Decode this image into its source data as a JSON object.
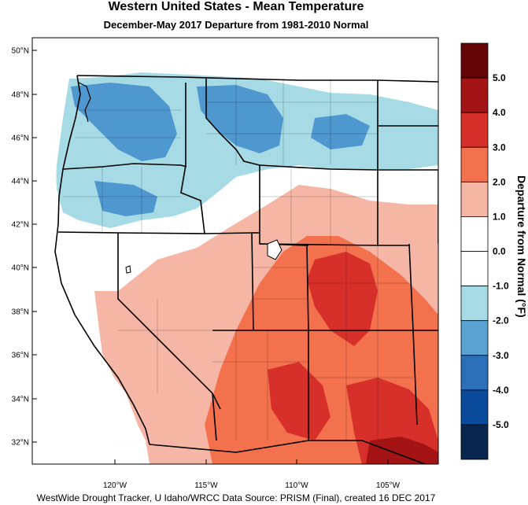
{
  "title": "Western United States - Mean Temperature",
  "subtitle": "December-May 2017  Departure from 1981-2010 Normal",
  "credit": "WestWide Drought Tracker, U Idaho/WRCC Data Source: PRISM (Final), created 16 DEC 2017",
  "latitude_labels": [
    "50°N",
    "48°N",
    "46°N",
    "44°N",
    "42°N",
    "40°N",
    "38°N",
    "36°N",
    "34°N",
    "32°N"
  ],
  "longitude_labels": [
    "120°W",
    "115°W",
    "110°W",
    "105°W"
  ],
  "colorbar": {
    "title": "Departure from Normal (°F)",
    "tick_labels": [
      "5.0",
      "4.0",
      "3.0",
      "2.0",
      "1.0",
      "0.0",
      "-1.0",
      "-2.0",
      "-3.0",
      "-4.0",
      "-5.0"
    ],
    "colors": [
      "#650505",
      "#a51414",
      "#d7302a",
      "#f4714e",
      "#f6b6a6",
      "#ffffff",
      "#ffffff",
      "#a6dbe6",
      "#5aa2d2",
      "#2a6fb8",
      "#0a4a9a",
      "#08264e"
    ]
  },
  "colors": {
    "cool": "#4f97cf",
    "cool_light": "#a6dbe6",
    "warm_light": "#f6b6a6",
    "warm": "#f4714e",
    "hot": "#d7302a",
    "very_hot": "#a51414"
  }
}
